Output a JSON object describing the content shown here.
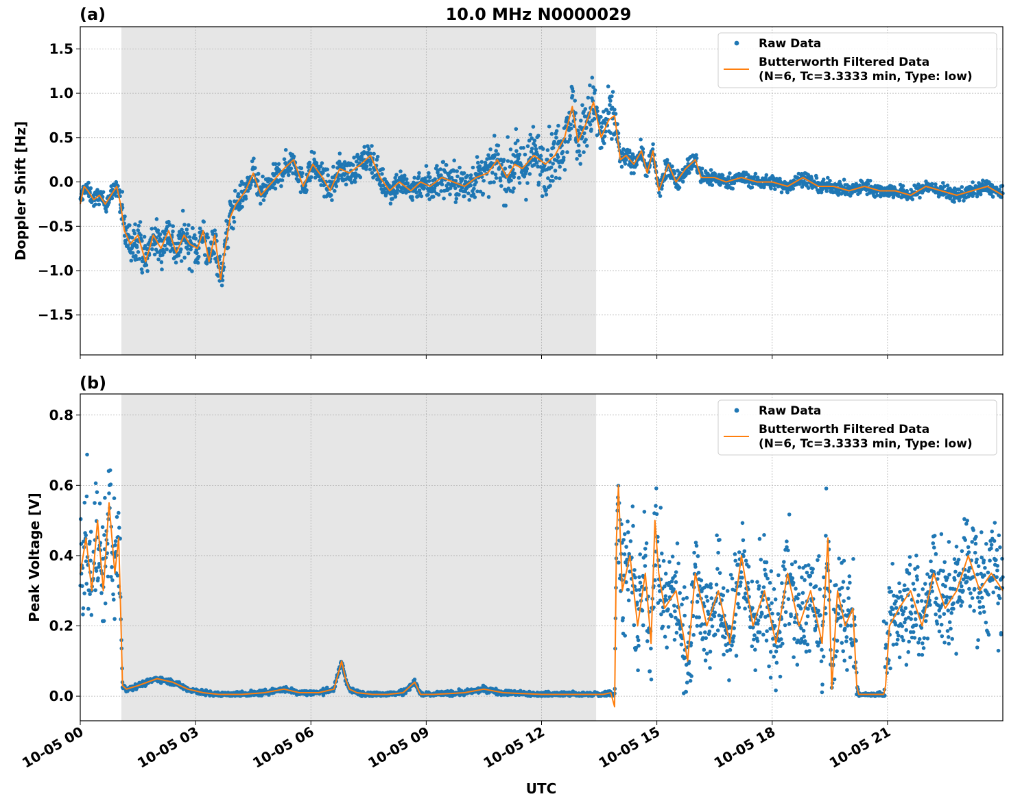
{
  "figure": {
    "title": "10.0 MHz N0000029",
    "xlabel": "UTC"
  },
  "colors": {
    "raw": "#1f77b4",
    "filtered": "#ff7f0e",
    "shade": "#e6e6e6",
    "grid": "#b0b0b0"
  },
  "legend": {
    "raw": "Raw Data",
    "filtered_line1": "Butterworth Filtered Data",
    "filtered_line2": "(N=6, Tc=3.3333 min, Type: low)"
  },
  "panels": {
    "a": {
      "label": "(a)"
    },
    "b": {
      "label": "(b)"
    }
  },
  "chart_data": [
    {
      "type": "scatter",
      "panel": "(a)",
      "title": "10.0 MHz N0000029",
      "xlabel": "",
      "ylabel": "Doppler Shift [Hz]",
      "xlim_hours": [
        0,
        24
      ],
      "ylim": [
        -1.95,
        1.75
      ],
      "x_ticks": [
        "10-05 00",
        "10-05 03",
        "10-05 06",
        "10-05 09",
        "10-05 12",
        "10-05 15",
        "10-05 18",
        "10-05 21"
      ],
      "y_ticks": [
        -1.5,
        -1.0,
        -0.5,
        0.0,
        0.5,
        1.0,
        1.5
      ],
      "y_tick_labels": [
        "−1.5",
        "−1.0",
        "−0.5",
        "0.0",
        "0.5",
        "1.0",
        "1.5"
      ],
      "shaded_region_hours": [
        1.07,
        13.42
      ],
      "grid": true,
      "legend_position": "upper right",
      "series": [
        {
          "name": "Butterworth Filtered Data",
          "style": "line",
          "x_hours": [
            0,
            0.1,
            0.2,
            0.35,
            0.5,
            0.65,
            0.8,
            0.95,
            1.05,
            1.15,
            1.3,
            1.5,
            1.7,
            1.9,
            2.1,
            2.3,
            2.5,
            2.7,
            2.85,
            3.05,
            3.2,
            3.35,
            3.5,
            3.65,
            3.75,
            3.9,
            4.05,
            4.3,
            4.5,
            4.7,
            4.9,
            5.1,
            5.3,
            5.55,
            5.8,
            6.05,
            6.3,
            6.5,
            6.75,
            7,
            7.3,
            7.55,
            7.8,
            8.05,
            8.3,
            8.6,
            8.85,
            9.1,
            9.4,
            9.7,
            10,
            10.3,
            10.6,
            10.85,
            11.1,
            11.3,
            11.5,
            11.8,
            12.1,
            12.35,
            12.6,
            12.8,
            12.95,
            13.15,
            13.35,
            13.55,
            13.75,
            13.9,
            14.05,
            14.2,
            14.4,
            14.6,
            14.75,
            14.9,
            15.05,
            15.3,
            15.5,
            15.75,
            16,
            16.15,
            16.3,
            16.5,
            16.8,
            17.2,
            17.6,
            18,
            18.4,
            18.8,
            19.2,
            19.6,
            20,
            20.4,
            20.8,
            21.2,
            21.6,
            22,
            22.4,
            22.8,
            23.2,
            23.6,
            24
          ],
          "y": [
            -0.25,
            -0.05,
            -0.1,
            -0.2,
            -0.15,
            -0.25,
            -0.15,
            -0.05,
            -0.25,
            -0.55,
            -0.7,
            -0.6,
            -0.9,
            -0.6,
            -0.75,
            -0.55,
            -0.8,
            -0.6,
            -0.7,
            -0.75,
            -0.55,
            -0.9,
            -0.6,
            -1.1,
            -0.8,
            -0.4,
            -0.25,
            -0.1,
            0.1,
            -0.15,
            -0.05,
            0.05,
            0.15,
            0.25,
            -0.05,
            0.2,
            0.05,
            -0.1,
            0.15,
            0.1,
            0.2,
            0.3,
            0.05,
            -0.1,
            0.0,
            -0.1,
            0.0,
            -0.05,
            0.05,
            0.0,
            -0.05,
            0.05,
            0.1,
            0.25,
            0.05,
            0.2,
            0.15,
            0.3,
            0.2,
            0.3,
            0.5,
            0.85,
            0.45,
            0.65,
            0.9,
            0.5,
            0.7,
            0.75,
            0.25,
            0.3,
            0.2,
            0.35,
            0.1,
            0.35,
            -0.1,
            0.2,
            0.0,
            0.15,
            0.25,
            0.05,
            0.05,
            0.05,
            0.0,
            0.05,
            0.0,
            0.0,
            -0.05,
            0.05,
            -0.05,
            -0.05,
            -0.1,
            -0.05,
            -0.1,
            -0.1,
            -0.15,
            -0.05,
            -0.1,
            -0.15,
            -0.1,
            -0.05,
            -0.15
          ]
        },
        {
          "name": "Raw Data",
          "style": "scatter",
          "description_points": "dense scatter following the filtered curve with spread of roughly ±0.2 Hz (larger, about ±0.5 Hz, between 09 and 14 UTC)"
        }
      ]
    },
    {
      "type": "scatter",
      "panel": "(b)",
      "xlabel": "UTC",
      "ylabel": "Peak Voltage [V]",
      "xlim_hours": [
        0,
        24
      ],
      "ylim": [
        -0.07,
        0.86
      ],
      "x_ticks": [
        "10-05 00",
        "10-05 03",
        "10-05 06",
        "10-05 09",
        "10-05 12",
        "10-05 15",
        "10-05 18",
        "10-05 21"
      ],
      "y_ticks": [
        0.0,
        0.2,
        0.4,
        0.6,
        0.8
      ],
      "y_tick_labels": [
        "0.0",
        "0.2",
        "0.4",
        "0.6",
        "0.8"
      ],
      "shaded_region_hours": [
        1.07,
        13.42
      ],
      "grid": true,
      "legend_position": "upper right",
      "series": [
        {
          "name": "Butterworth Filtered Data",
          "style": "line",
          "x_hours": [
            0,
            0.15,
            0.3,
            0.45,
            0.6,
            0.75,
            0.9,
            1.0,
            1.05,
            1.1,
            1.2,
            1.5,
            2.0,
            2.4,
            2.8,
            3.2,
            3.6,
            4.2,
            4.8,
            5.3,
            5.7,
            6.2,
            6.6,
            6.8,
            6.9,
            7.0,
            7.2,
            7.6,
            8.0,
            8.4,
            8.7,
            8.85,
            9.2,
            10.0,
            10.5,
            11.0,
            12.0,
            13.0,
            13.6,
            13.8,
            13.9,
            13.95,
            14.0,
            14.1,
            14.3,
            14.5,
            14.7,
            14.85,
            14.95,
            15.05,
            15.2,
            15.5,
            15.8,
            16.0,
            16.3,
            16.6,
            16.9,
            17.2,
            17.5,
            17.8,
            18.1,
            18.4,
            18.7,
            19.0,
            19.3,
            19.45,
            19.55,
            19.7,
            19.9,
            20.1,
            20.2,
            20.25,
            20.35,
            20.6,
            20.9,
            20.95,
            21.05,
            21.3,
            21.6,
            21.9,
            22.2,
            22.5,
            22.8,
            23.1,
            23.4,
            23.7,
            24
          ],
          "y": [
            0.35,
            0.45,
            0.3,
            0.5,
            0.3,
            0.55,
            0.35,
            0.45,
            0.25,
            0.03,
            0.02,
            0.03,
            0.05,
            0.04,
            0.02,
            0.01,
            0.005,
            0.005,
            0.01,
            0.02,
            0.01,
            0.01,
            0.02,
            0.1,
            0.05,
            0.02,
            0.01,
            0.005,
            0.005,
            0.01,
            0.04,
            0.005,
            0.005,
            0.01,
            0.02,
            0.01,
            0.005,
            0.005,
            0.005,
            0.01,
            -0.03,
            0.45,
            0.6,
            0.3,
            0.4,
            0.2,
            0.35,
            0.15,
            0.5,
            0.35,
            0.25,
            0.3,
            0.1,
            0.35,
            0.2,
            0.3,
            0.15,
            0.4,
            0.2,
            0.3,
            0.15,
            0.35,
            0.2,
            0.3,
            0.15,
            0.45,
            0.02,
            0.3,
            0.2,
            0.25,
            0.03,
            0.005,
            0.005,
            0.005,
            0.005,
            0.03,
            0.2,
            0.25,
            0.3,
            0.2,
            0.35,
            0.25,
            0.3,
            0.4,
            0.3,
            0.35,
            0.3
          ]
        },
        {
          "name": "Raw Data",
          "style": "scatter",
          "description_points": "dense scatter around the filtered curve; large spread (up to ~0.8 V) before 01 UTC and after 14 UTC, near 0 V in the shaded interval"
        }
      ]
    }
  ]
}
